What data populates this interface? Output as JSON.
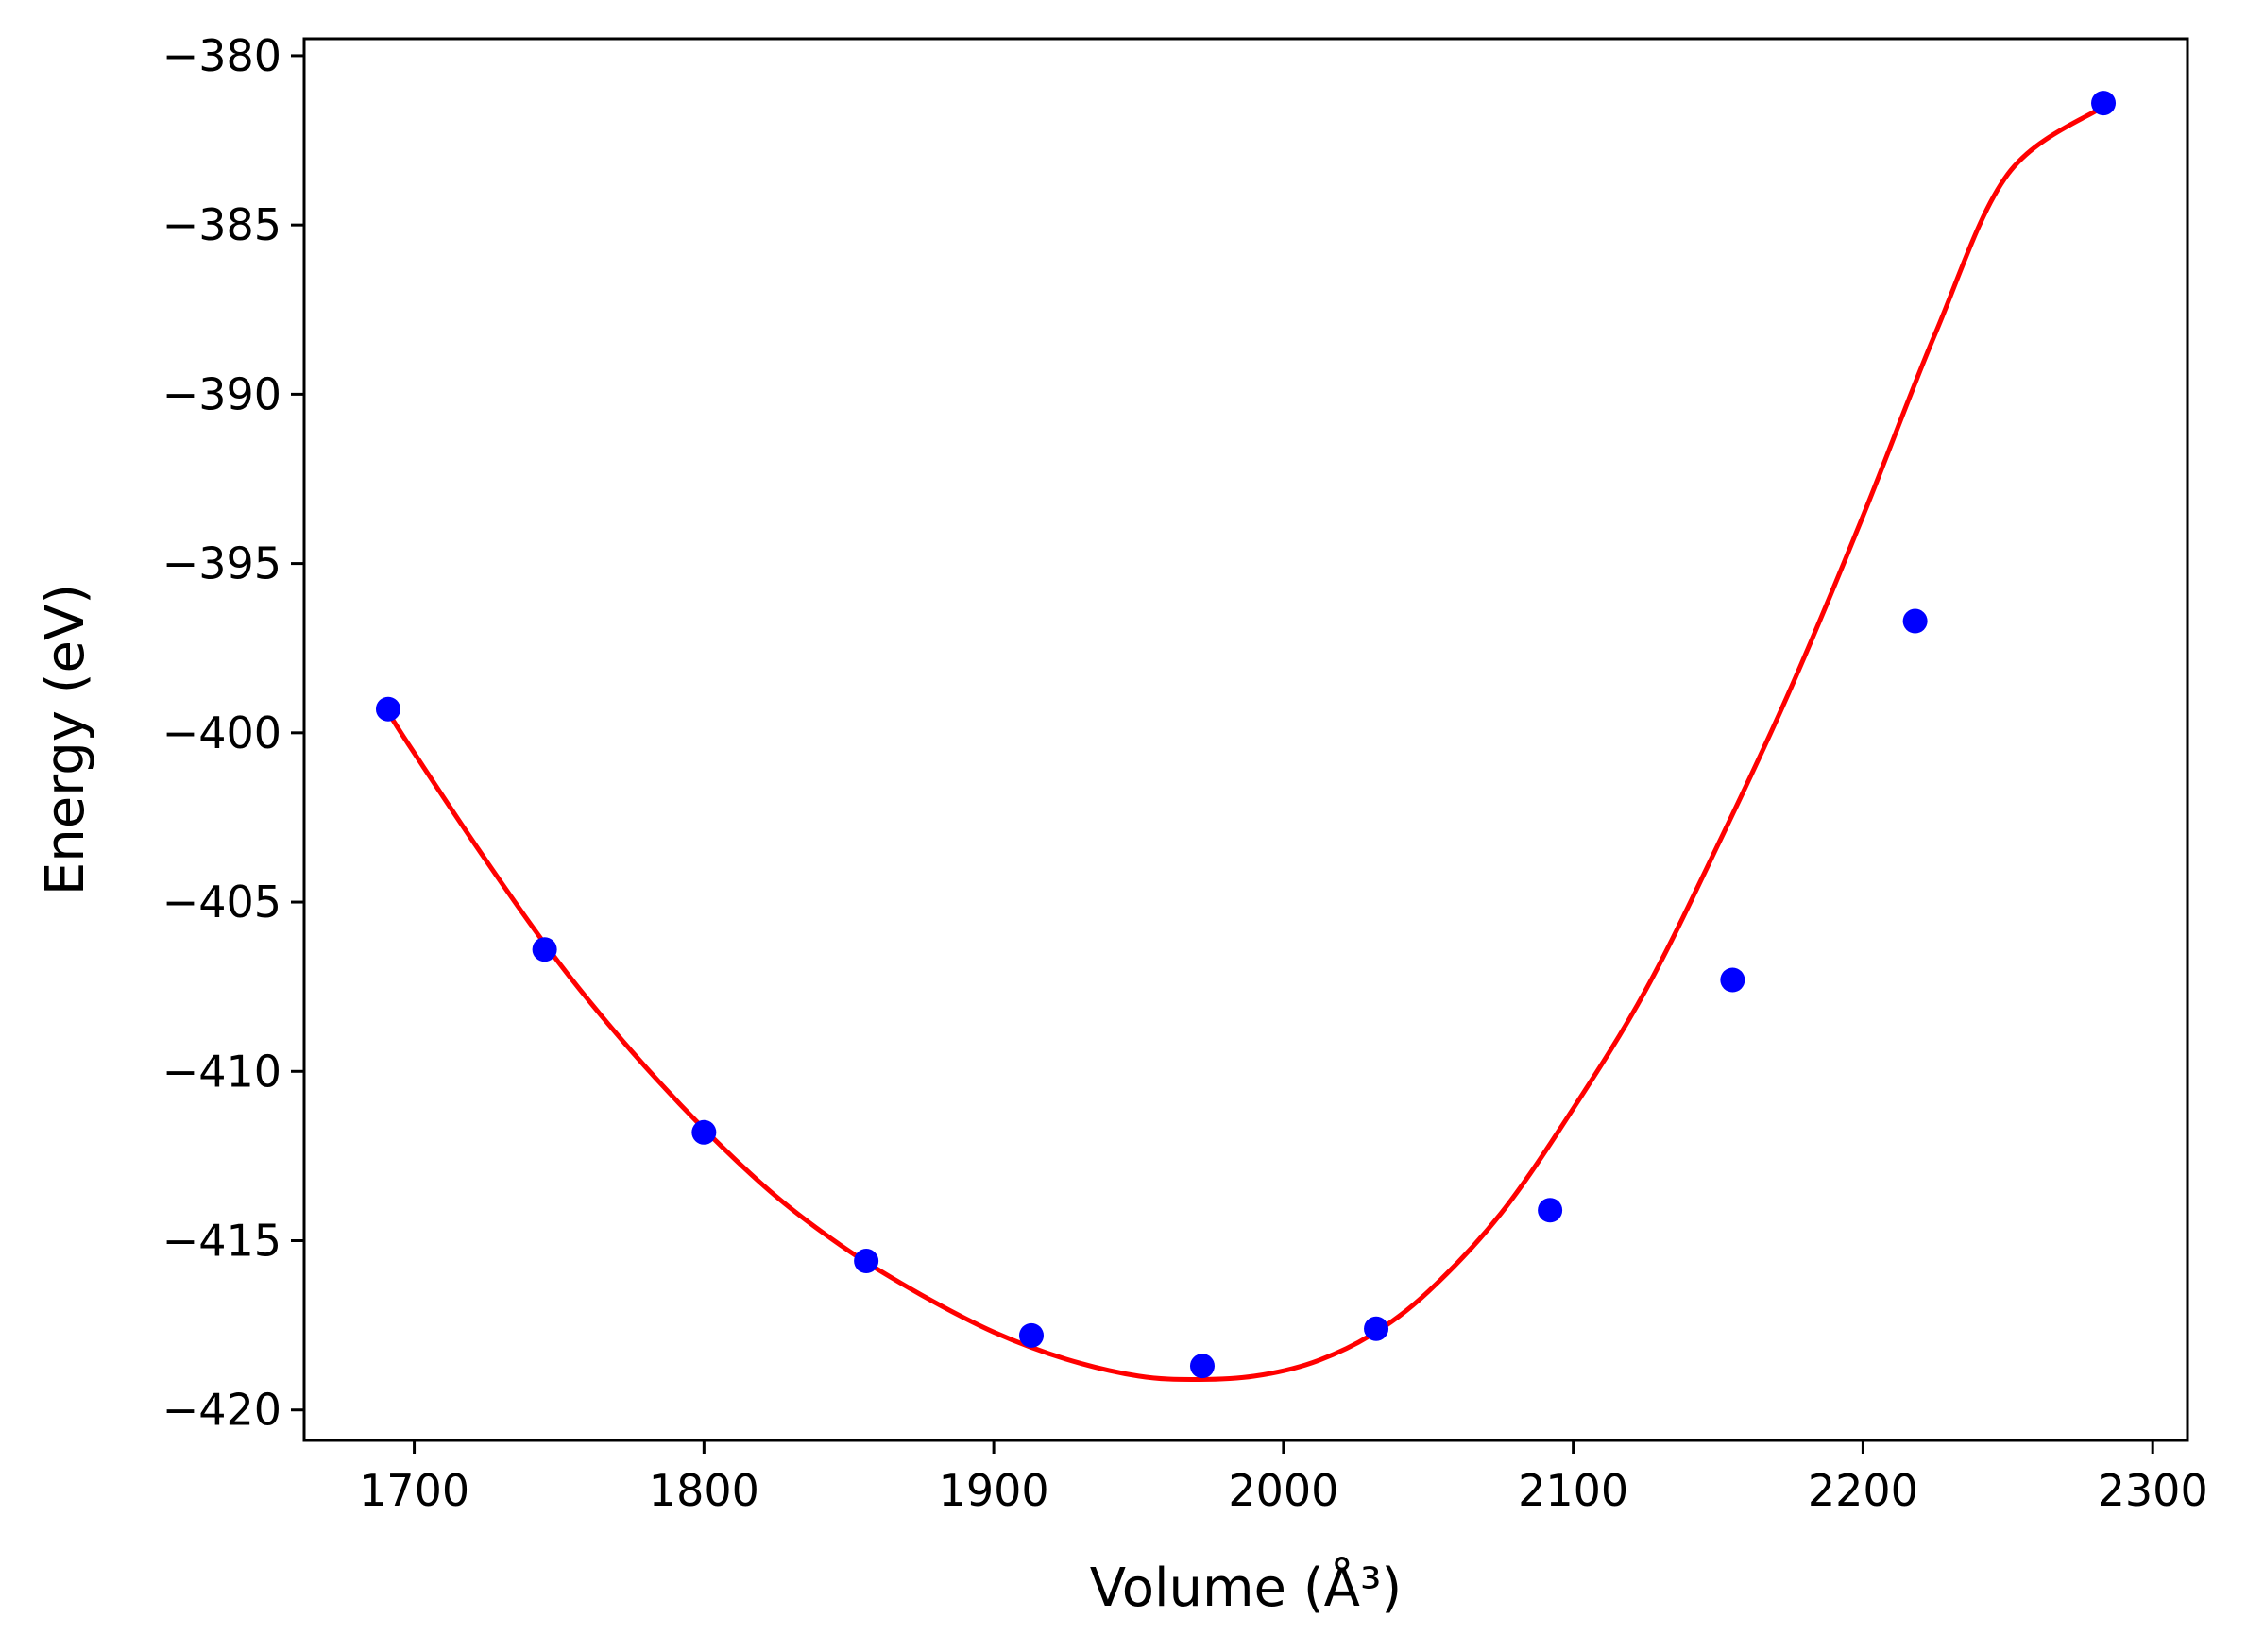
{
  "chart_data": {
    "type": "scatter",
    "title": "",
    "xlabel": "Volume (Å³)",
    "ylabel": "Energy (eV)",
    "xlim": [
      1662,
      2312
    ],
    "ylim": [
      -420.9,
      -379.5
    ],
    "x_ticks": [
      1700,
      1800,
      1900,
      2000,
      2100,
      2200,
      2300
    ],
    "x_tick_labels": [
      "1700",
      "1800",
      "1900",
      "2000",
      "2100",
      "2200",
      "2300"
    ],
    "y_ticks": [
      -380,
      -385,
      -390,
      -395,
      -400,
      -405,
      -410,
      -415,
      -420
    ],
    "y_tick_labels": [
      "−380",
      "−385",
      "−390",
      "−395",
      "−400",
      "−405",
      "−410",
      "−415",
      "−420"
    ],
    "grid": false,
    "series": [
      {
        "kind": "points",
        "color": "#0000ff",
        "x": [
          1691,
          1745,
          1800,
          1856,
          1913,
          1972,
          2032,
          2092,
          2155,
          2218,
          2283
        ],
        "y": [
          -399.3,
          -406.4,
          -411.8,
          -415.6,
          -417.8,
          -418.7,
          -417.6,
          -414.1,
          -407.3,
          -396.7,
          -381.4
        ]
      },
      {
        "kind": "fit-curve",
        "color": "#ff0000",
        "x": [
          1691,
          1700,
          1725,
          1750,
          1775,
          1800,
          1825,
          1850,
          1875,
          1900,
          1925,
          1950,
          1970,
          1990,
          2010,
          2030,
          2050,
          2075,
          2100,
          2125,
          2150,
          2175,
          2200,
          2225,
          2250,
          2283
        ],
        "y": [
          -399.4,
          -400.6,
          -403.8,
          -406.8,
          -409.4,
          -411.7,
          -413.7,
          -415.3,
          -416.6,
          -417.7,
          -418.5,
          -419.0,
          -419.1,
          -419.0,
          -418.6,
          -417.8,
          -416.5,
          -414.2,
          -411.1,
          -407.6,
          -403.3,
          -398.7,
          -393.6,
          -388.2,
          -383.5,
          -381.5
        ]
      }
    ]
  }
}
